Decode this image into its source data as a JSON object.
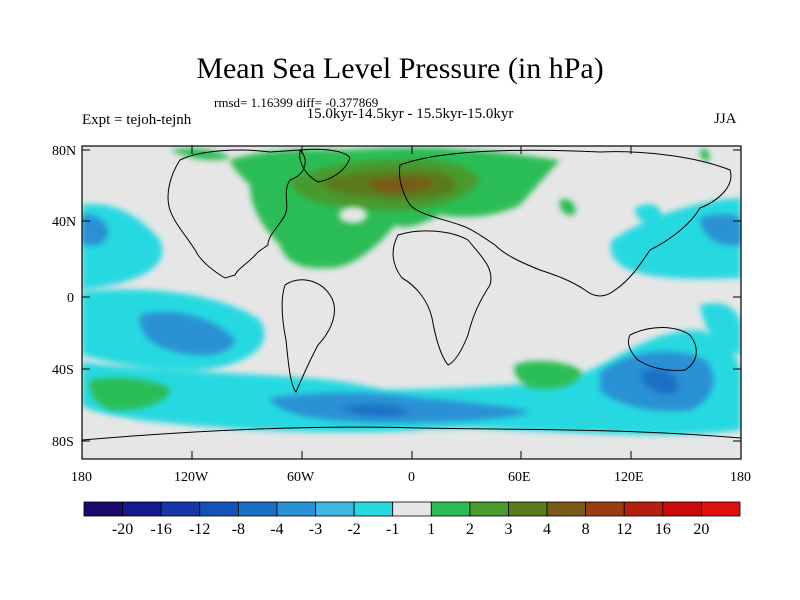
{
  "title": "Mean Sea Level Pressure (in hPa)",
  "stats": "rmsd= 1.16399 diff= -0.377869",
  "period": "15.0kyr-14.5kyr - 15.5kyr-15.0kyr",
  "experiment": "Expt = tejoh-tejnh",
  "season": "JJA",
  "lat_ticks": [
    "80N",
    "40N",
    "0",
    "40S",
    "80S"
  ],
  "lon_ticks": [
    "180",
    "120W",
    "60W",
    "0",
    "60E",
    "120E",
    "180"
  ],
  "legend": {
    "labels": [
      "-20",
      "-16",
      "-12",
      "-8",
      "-4",
      "-3",
      "-2",
      "-1",
      "1",
      "2",
      "3",
      "4",
      "8",
      "12",
      "16",
      "20"
    ],
    "colors": [
      "#1a0a6e",
      "#15198f",
      "#1636a8",
      "#1552b8",
      "#1d6fc4",
      "#2991d4",
      "#3bb8e0",
      "#26d9e0",
      "#e6e6e6",
      "#2bbd55",
      "#4a9a2e",
      "#5a7a1e",
      "#7a5a17",
      "#9a3e12",
      "#b51f10",
      "#cc0a0a",
      "#e01010"
    ]
  },
  "chart_data": {
    "type": "heatmap",
    "title": "Mean Sea Level Pressure (in hPa)",
    "subtitle": "15.0kyr-14.5kyr - 15.5kyr-15.0kyr",
    "variable": "MSLP difference (hPa)",
    "x_axis": {
      "range": [
        -180,
        180
      ],
      "ticks": [
        "180",
        "120W",
        "60W",
        "0",
        "60E",
        "120E",
        "180"
      ]
    },
    "y_axis": {
      "range": [
        -90,
        90
      ],
      "ticks": [
        "80N",
        "40N",
        "0",
        "40S",
        "80S"
      ]
    },
    "contour_levels": [
      -20,
      -16,
      -12,
      -8,
      -4,
      -3,
      -2,
      -1,
      1,
      2,
      3,
      4,
      8,
      12,
      16,
      20
    ],
    "rmsd": 1.16399,
    "diff": -0.377869
  }
}
